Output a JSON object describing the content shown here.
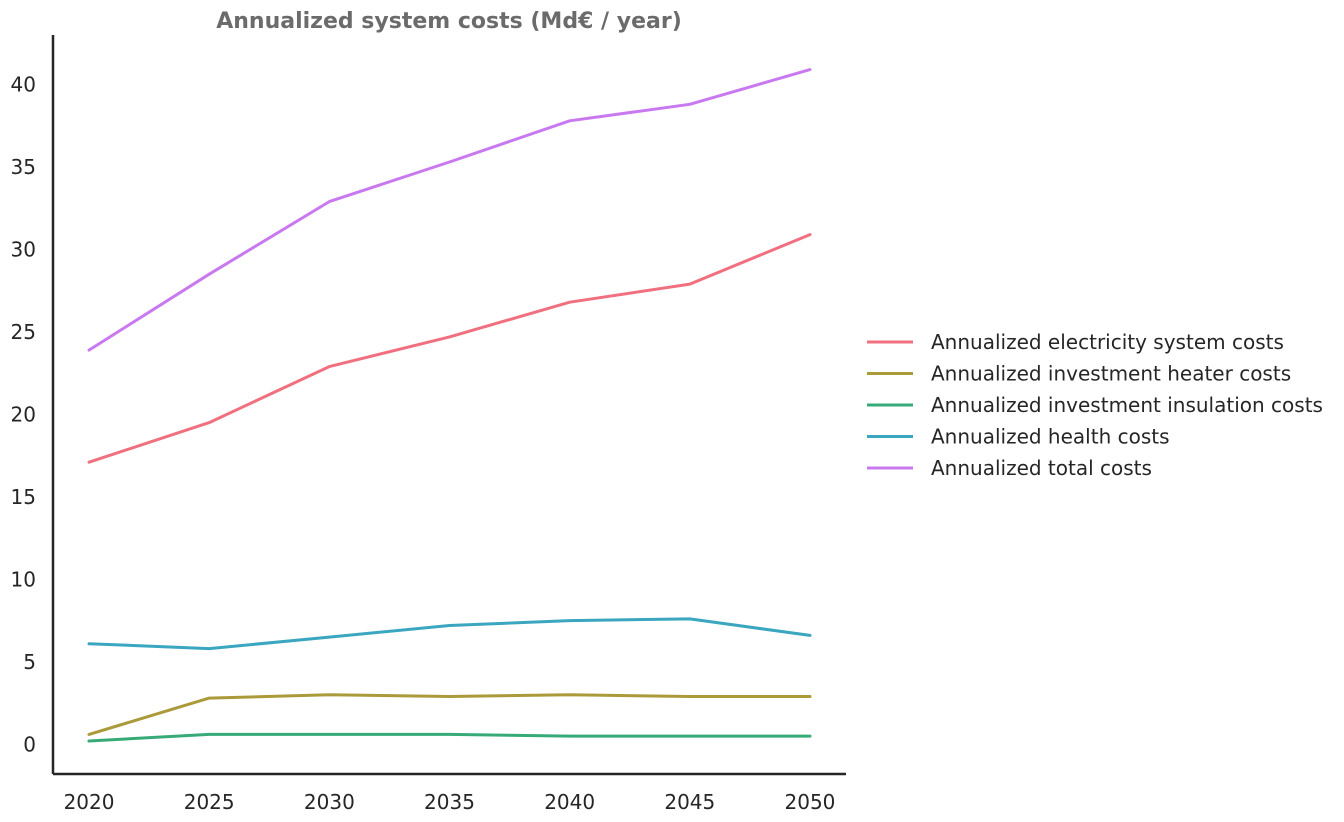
{
  "chart_data": {
    "type": "line",
    "title": "Annualized system costs (Md€ / year)",
    "xlabel": "",
    "ylabel": "",
    "x": [
      2020,
      2025,
      2030,
      2035,
      2040,
      2045,
      2050
    ],
    "xticks": [
      2020,
      2025,
      2030,
      2035,
      2040,
      2045,
      2050
    ],
    "yticks": [
      0,
      5,
      10,
      15,
      20,
      25,
      30,
      35,
      40
    ],
    "xlim": [
      2018.5,
      2051.5
    ],
    "ylim": [
      -1.8,
      43
    ],
    "grid": false,
    "legend_position": "center-right",
    "series": [
      {
        "name": "Annualized electricity system costs",
        "color": "#f0707f",
        "values": [
          17.1,
          19.5,
          22.9,
          24.7,
          26.8,
          27.9,
          30.9
        ]
      },
      {
        "name": "Annualized investment heater costs",
        "color": "#ab9a3a",
        "values": [
          0.6,
          2.8,
          3.0,
          2.9,
          3.0,
          2.9,
          2.9
        ]
      },
      {
        "name": "Annualized investment insulation costs",
        "color": "#36ab78",
        "values": [
          0.2,
          0.6,
          0.6,
          0.6,
          0.5,
          0.5,
          0.5
        ]
      },
      {
        "name": "Annualized health costs",
        "color": "#3aa6c0",
        "values": [
          6.1,
          5.8,
          6.5,
          7.2,
          7.5,
          7.6,
          6.6
        ]
      },
      {
        "name": "Annualized total costs",
        "color": "#c979f0",
        "values": [
          23.9,
          28.5,
          32.9,
          35.3,
          37.8,
          38.8,
          40.9
        ]
      }
    ]
  }
}
